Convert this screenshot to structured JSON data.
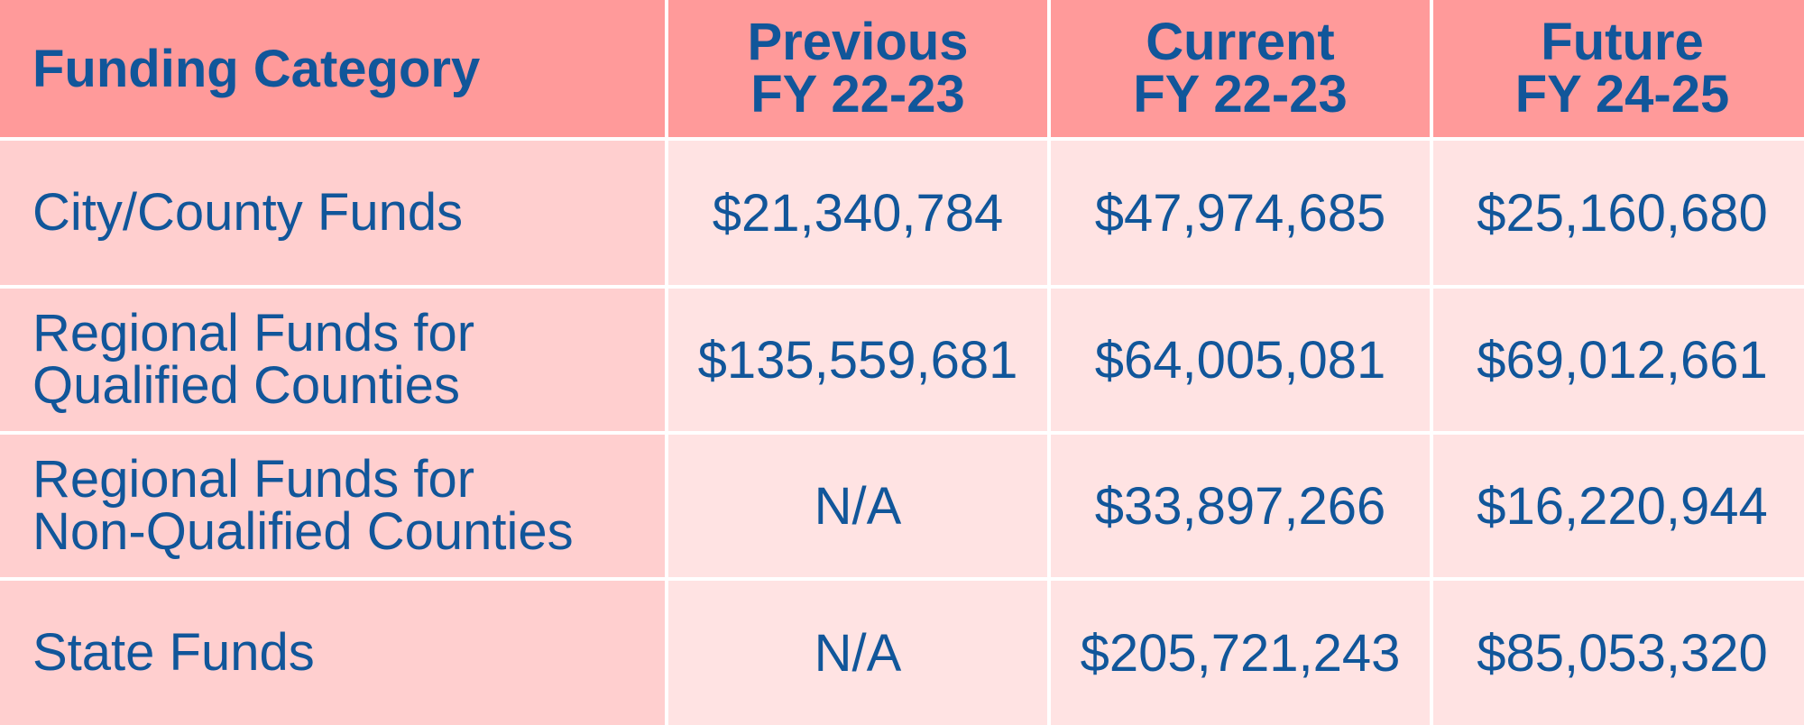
{
  "table": {
    "columns": [
      {
        "lines": [
          "Funding Category"
        ]
      },
      {
        "lines": [
          "Previous",
          "FY 22-23"
        ]
      },
      {
        "lines": [
          "Current",
          "FY 22-23"
        ]
      },
      {
        "lines": [
          "Future",
          "FY 24-25"
        ]
      }
    ],
    "rows": [
      {
        "category_lines": [
          "City/County Funds"
        ],
        "values": [
          "$21,340,784",
          "$47,974,685",
          "$25,160,680"
        ]
      },
      {
        "category_lines": [
          "Regional Funds for",
          "Qualified Counties"
        ],
        "values": [
          "$135,559,681",
          "$64,005,081",
          "$69,012,661"
        ]
      },
      {
        "category_lines": [
          "Regional Funds for",
          "Non-Qualified Counties"
        ],
        "values": [
          "N/A",
          "$33,897,266",
          "$16,220,944"
        ]
      },
      {
        "category_lines": [
          "State Funds"
        ],
        "values": [
          "N/A",
          "$205,721,243",
          "$85,053,320"
        ]
      }
    ]
  },
  "colors": {
    "header_bg": "#ff9a9a",
    "category_bg": "#ffcfcf",
    "value_bg": "#ffe3e3",
    "text": "#11569a",
    "grid_lines": "#ffffff"
  }
}
